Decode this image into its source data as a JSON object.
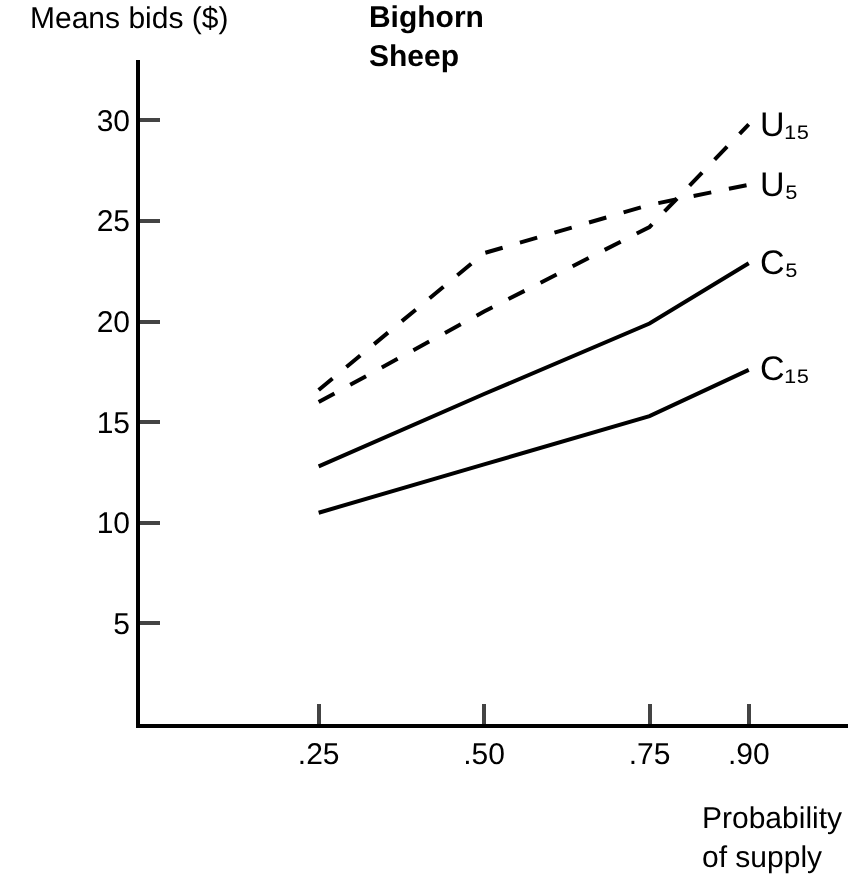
{
  "chart_data": {
    "type": "line",
    "title": "Bighorn\nSheep",
    "xlabel": "Probability\nof supply",
    "ylabel": "Means bids ($)",
    "x": [
      0.25,
      0.5,
      0.75,
      0.9
    ],
    "series": [
      {
        "name": "U₁₅",
        "color": "#000000",
        "line_style": "dashed",
        "values": [
          16.0,
          20.5,
          24.7,
          29.8
        ]
      },
      {
        "name": "U₅",
        "color": "#000000",
        "line_style": "dashed",
        "values": [
          16.6,
          23.4,
          25.8,
          26.8
        ]
      },
      {
        "name": "C₅",
        "color": "#000000",
        "line_style": "solid",
        "values": [
          12.8,
          16.4,
          19.9,
          22.9
        ]
      },
      {
        "name": "C₁₅",
        "color": "#000000",
        "line_style": "solid",
        "values": [
          10.5,
          12.9,
          15.3,
          17.6
        ]
      }
    ],
    "xlim": [
      -0.02,
      1.05
    ],
    "ylim": [
      0,
      33
    ],
    "xticks": [
      {
        "value": 0.25,
        "label": ".25"
      },
      {
        "value": 0.5,
        "label": ".50"
      },
      {
        "value": 0.75,
        "label": ".75"
      },
      {
        "value": 0.9,
        "label": ".90"
      }
    ],
    "yticks": [
      5,
      10,
      15,
      20,
      25,
      30
    ],
    "legend": false,
    "marker": "none"
  }
}
